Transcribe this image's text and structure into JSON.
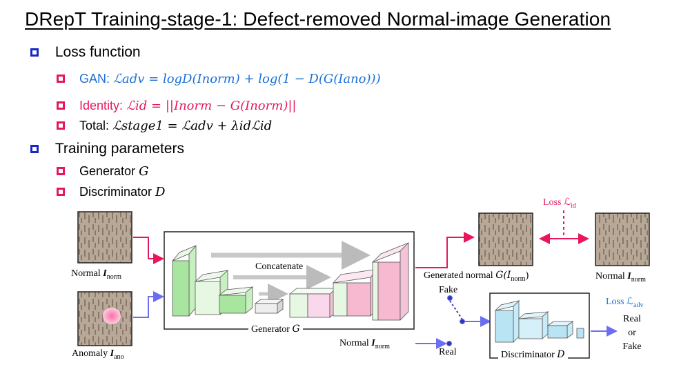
{
  "title": "DRepT Training-stage-1: Defect-removed Normal-image Generation",
  "sections": [
    {
      "label": "Loss function"
    },
    {
      "label": "Training parameters"
    }
  ],
  "loss": {
    "gan_label": "GAN: ",
    "gan_formula": "ℒadv = logD(Inorm) + log(1 − D(G(Iano)))",
    "identity_label": "Identity: ",
    "identity_formula": "ℒid = ||Inorm − G(Inorm)||",
    "total_label": "Total: ",
    "total_formula": "ℒstage1 = ℒadv + λidℒid"
  },
  "params": {
    "generator_label": "Generator ",
    "generator_sym": "G",
    "discriminator_label": "Discriminator ",
    "discriminator_sym": "D"
  },
  "diagram": {
    "normal_caption": "Normal ",
    "normal_sym": "I",
    "normal_sub": "norm",
    "anomaly_caption": "Anomaly ",
    "anomaly_sym": "I",
    "anomaly_sub": "ano",
    "concatenate": "Concatenate",
    "generator_caption": "Generator ",
    "generator_sym": "G",
    "generated_caption": "Generated normal ",
    "generated_sym": "G(I",
    "generated_sub": "norm",
    "generated_close": ")",
    "normal2_caption": "Normal ",
    "normal2_sym": "I",
    "normal2_sub": "norm",
    "loss_id_label": "Loss ℒ",
    "loss_id_sub": "id",
    "loss_adv_label": "Loss ℒ",
    "loss_adv_sub": "adv",
    "fake_label": "Fake",
    "real_label": "Real",
    "normal3_caption": "Normal ",
    "normal3_sym": "I",
    "normal3_sub": "norm",
    "discriminator_caption": "Discriminator ",
    "discriminator_sym": "D",
    "output_real": "Real",
    "output_or": "or",
    "output_fake": "Fake"
  },
  "colors": {
    "bullet_level1": "#1626c8",
    "bullet_level2": "#e8175d",
    "gan_text": "#1a6fd6",
    "identity_text": "#e8175d",
    "texture": "#b8a898",
    "encoder_block": "#a8e6a0",
    "decoder_block": "#f7b9d0",
    "discriminator_block": "#b8e4f4"
  }
}
